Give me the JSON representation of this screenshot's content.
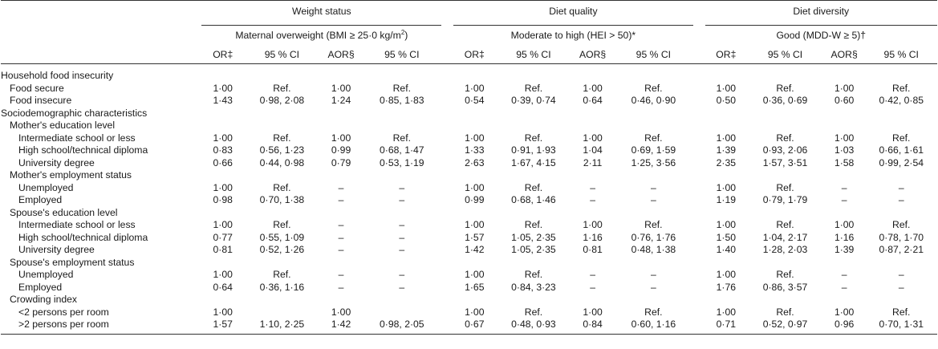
{
  "header": {
    "groups": [
      "Weight status",
      "Diet quality",
      "Diet diversity"
    ],
    "subgroups": [
      {
        "text": "Maternal overweight (BMI ≥ 25·0 kg/m",
        "sup": "2",
        "tail": ")"
      },
      {
        "text": "Moderate to high (HEI > 50)*",
        "sup": "",
        "tail": ""
      },
      {
        "text": "Good (MDD-W ≥ 5)†",
        "sup": "",
        "tail": ""
      }
    ],
    "columns": [
      "OR‡",
      "95 % CI",
      "AOR§",
      "95 % CI",
      "OR‡",
      "95 % CI",
      "AOR§",
      "95 % CI",
      "OR‡",
      "95 % CI",
      "AOR§",
      "95 % CI"
    ]
  },
  "rows": [
    {
      "label": "Household food insecurity",
      "indent": 0,
      "cells": [
        "",
        "",
        "",
        "",
        "",
        "",
        "",
        "",
        "",
        "",
        "",
        ""
      ]
    },
    {
      "label": "Food secure",
      "indent": 1,
      "cells": [
        "1·00",
        "Ref.",
        "1·00",
        "Ref.",
        "1·00",
        "Ref.",
        "1·00",
        "Ref.",
        "1·00",
        "Ref.",
        "1·00",
        "Ref."
      ]
    },
    {
      "label": "Food insecure",
      "indent": 1,
      "cells": [
        "1·43",
        "0·98, 2·08",
        "1·24",
        "0·85, 1·83",
        "0·54",
        "0·39, 0·74",
        "0·64",
        "0·46, 0·90",
        "0·50",
        "0·36, 0·69",
        "0·60",
        "0·42, 0·85"
      ]
    },
    {
      "label": "Sociodemographic characteristics",
      "indent": 0,
      "cells": [
        "",
        "",
        "",
        "",
        "",
        "",
        "",
        "",
        "",
        "",
        "",
        ""
      ]
    },
    {
      "label": "Mother's education level",
      "indent": 1,
      "cells": [
        "",
        "",
        "",
        "",
        "",
        "",
        "",
        "",
        "",
        "",
        "",
        ""
      ]
    },
    {
      "label": "Intermediate school or less",
      "indent": 2,
      "cells": [
        "1·00",
        "Ref.",
        "1·00",
        "Ref.",
        "1·00",
        "Ref.",
        "1·00",
        "Ref.",
        "1·00",
        "Ref.",
        "1·00",
        "Ref."
      ]
    },
    {
      "label": "High school/technical diploma",
      "indent": 2,
      "cells": [
        "0·83",
        "0·56, 1·23",
        "0·99",
        "0·68, 1·47",
        "1·33",
        "0·91, 1·93",
        "1·04",
        "0·69, 1·59",
        "1·39",
        "0·93, 2·06",
        "1·03",
        "0·66, 1·61"
      ]
    },
    {
      "label": "University degree",
      "indent": 2,
      "cells": [
        "0·66",
        "0·44, 0·98",
        "0·79",
        "0·53, 1·19",
        "2·63",
        "1·67, 4·15",
        "2·11",
        "1·25, 3·56",
        "2·35",
        "1·57, 3·51",
        "1·58",
        "0·99, 2·54"
      ]
    },
    {
      "label": "Mother's employment status",
      "indent": 1,
      "cells": [
        "",
        "",
        "",
        "",
        "",
        "",
        "",
        "",
        "",
        "",
        "",
        ""
      ]
    },
    {
      "label": "Unemployed",
      "indent": 2,
      "cells": [
        "1·00",
        "Ref.",
        "–",
        "–",
        "1·00",
        "Ref.",
        "–",
        "–",
        "1·00",
        "Ref.",
        "–",
        "–"
      ]
    },
    {
      "label": "Employed",
      "indent": 2,
      "cells": [
        "0·98",
        "0·70, 1·38",
        "–",
        "–",
        "0·99",
        "0·68, 1·46",
        "–",
        "–",
        "1·19",
        "0·79, 1·79",
        "–",
        "–"
      ]
    },
    {
      "label": "Spouse's education level",
      "indent": 1,
      "cells": [
        "",
        "",
        "",
        "",
        "",
        "",
        "",
        "",
        "",
        "",
        "",
        ""
      ]
    },
    {
      "label": "Intermediate school or less",
      "indent": 2,
      "cells": [
        "1·00",
        "Ref.",
        "–",
        "–",
        "1·00",
        "Ref.",
        "1·00",
        "Ref.",
        "1·00",
        "Ref.",
        "1·00",
        "Ref."
      ]
    },
    {
      "label": "High school/technical diploma",
      "indent": 2,
      "cells": [
        "0·77",
        "0·55, 1·09",
        "–",
        "–",
        "1·57",
        "1·05, 2·35",
        "1·16",
        "0·76, 1·76",
        "1·50",
        "1·04, 2·17",
        "1·16",
        "0·78, 1·70"
      ]
    },
    {
      "label": "University degree",
      "indent": 2,
      "cells": [
        "0·81",
        "0·52, 1·26",
        "–",
        "–",
        "1·42",
        "1·05, 2·35",
        "0·81",
        "0·48, 1·38",
        "1·40",
        "1·28, 2·03",
        "1·39",
        "0·87, 2·21"
      ]
    },
    {
      "label": "Spouse's employment status",
      "indent": 1,
      "cells": [
        "",
        "",
        "",
        "",
        "",
        "",
        "",
        "",
        "",
        "",
        "",
        ""
      ]
    },
    {
      "label": "Unemployed",
      "indent": 2,
      "cells": [
        "1·00",
        "Ref.",
        "–",
        "–",
        "1·00",
        "Ref.",
        "–",
        "–",
        "1·00",
        "Ref.",
        "–",
        "–"
      ]
    },
    {
      "label": "Employed",
      "indent": 2,
      "cells": [
        "0·64",
        "0·36, 1·16",
        "–",
        "–",
        "1·65",
        "0·84, 3·23",
        "–",
        "–",
        "1·76",
        "0·86, 3·57",
        "–",
        "–"
      ]
    },
    {
      "label": "Crowding index",
      "indent": 1,
      "cells": [
        "",
        "",
        "",
        "",
        "",
        "",
        "",
        "",
        "",
        "",
        "",
        ""
      ]
    },
    {
      "label": "<2 persons per room",
      "indent": 2,
      "cells": [
        "1·00",
        "",
        "1·00",
        "",
        "1·00",
        "Ref.",
        "1·00",
        "Ref.",
        "1·00",
        "Ref.",
        "1·00",
        "Ref."
      ]
    },
    {
      "label": ">2 persons per room",
      "indent": 2,
      "cells": [
        "1·57",
        "1·10, 2·25",
        "1·42",
        "0·98, 2·05",
        "0·67",
        "0·48, 0·93",
        "0·84",
        "0·60, 1·16",
        "0·71",
        "0·52, 0·97",
        "0·96",
        "0·70, 1·31"
      ]
    }
  ]
}
